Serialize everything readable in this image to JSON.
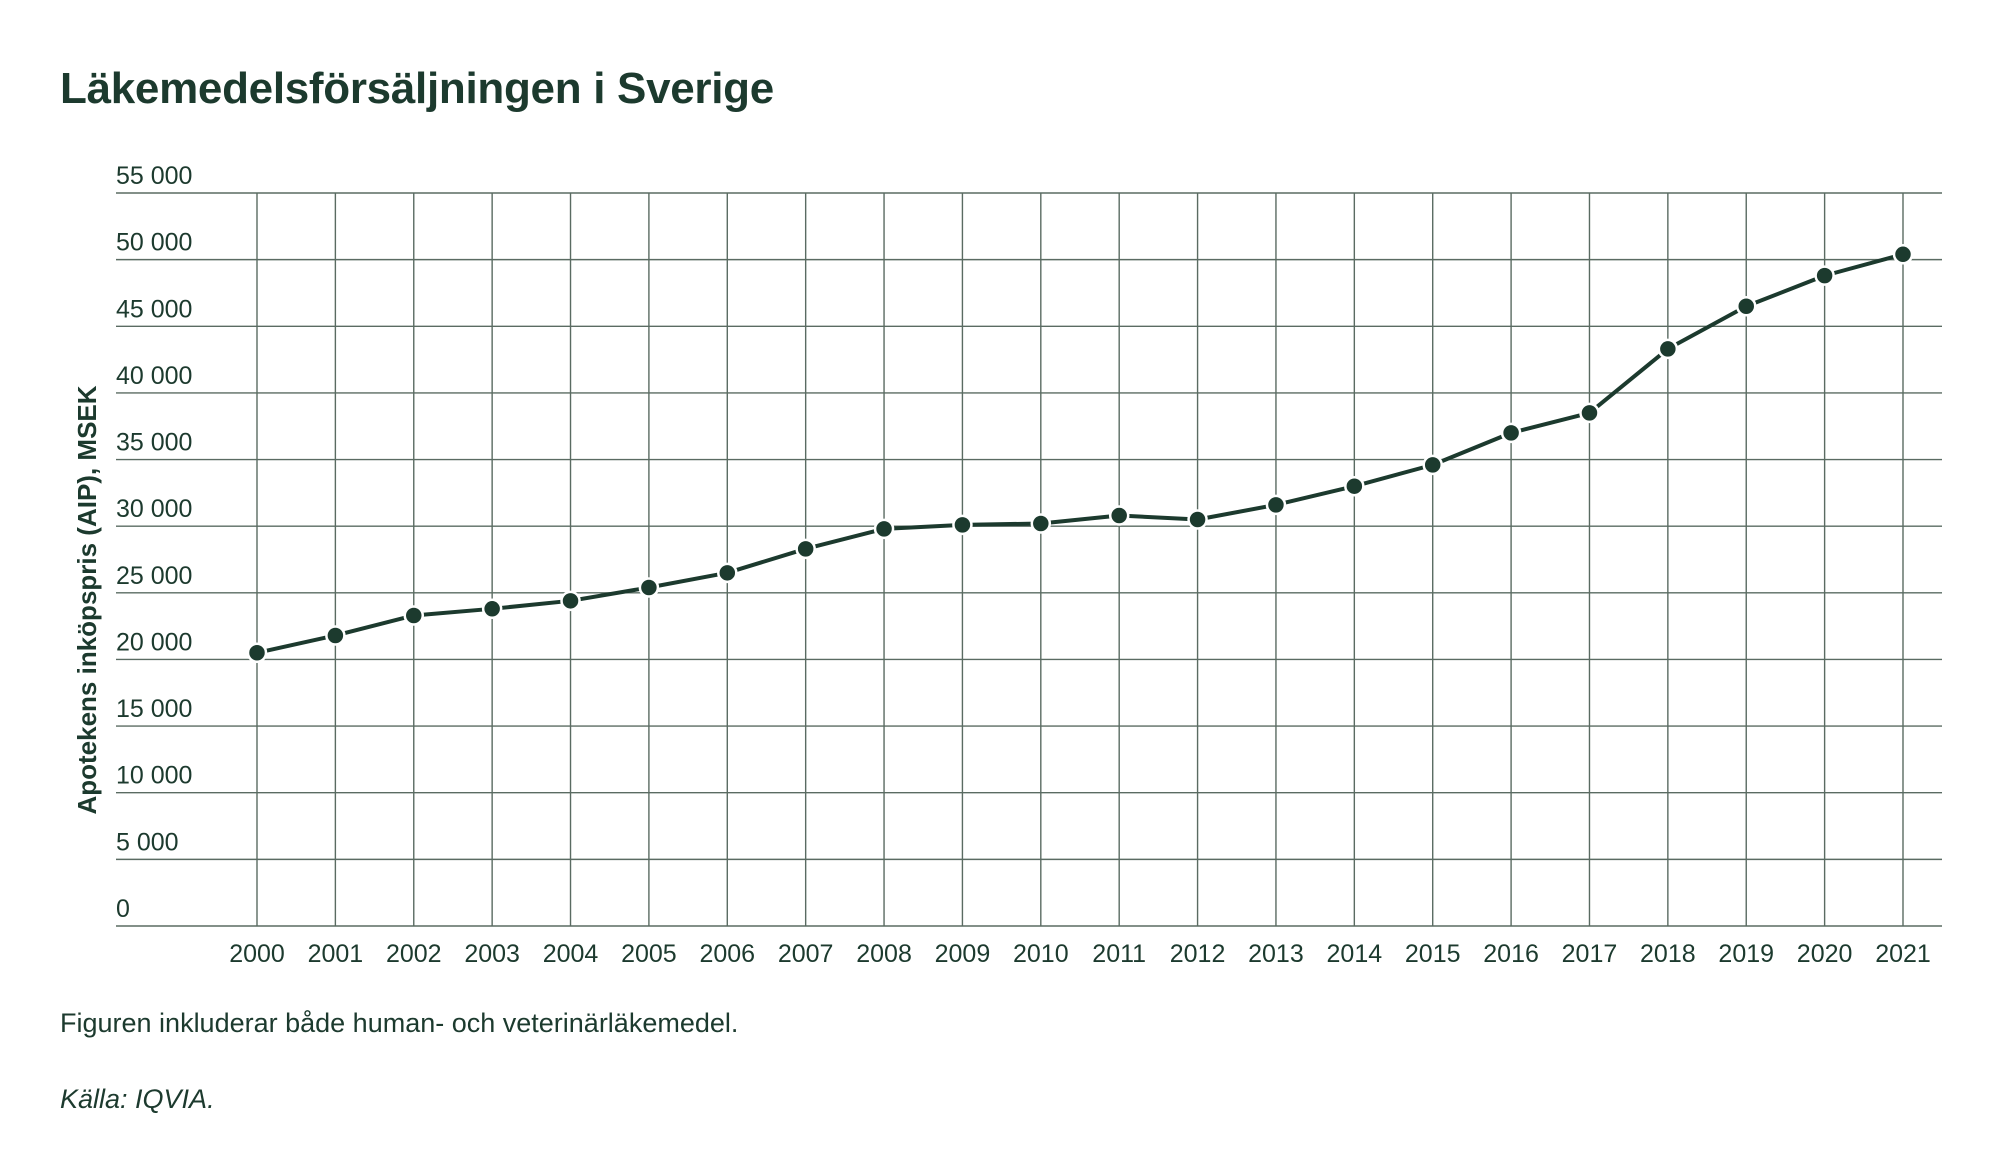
{
  "header": {
    "title": "Läkemedelsförsäljningen i Sverige"
  },
  "footer": {
    "note": "Figuren inkluderar både human- och veterinärläkemedel.",
    "source": "Källa: IQVIA."
  },
  "colors": {
    "text": "#1c3a2e",
    "grid": "#5a6b62",
    "line": "#1c3a2e",
    "marker": "#1c3a2e",
    "marker_outline": "#ffffff"
  },
  "chart_data": {
    "type": "line",
    "title": "Läkemedelsförsäljningen i Sverige",
    "xlabel": "",
    "ylabel": "Apotekens inköpspris (AIP), MSEK",
    "ylim": [
      0,
      55000
    ],
    "ytick_values": [
      0,
      5000,
      10000,
      15000,
      20000,
      25000,
      30000,
      35000,
      40000,
      45000,
      50000,
      55000
    ],
    "ytick_labels": [
      "0",
      "5 000",
      "10 000",
      "15 000",
      "20 000",
      "25 000",
      "30 000",
      "35 000",
      "40 000",
      "45 000",
      "50 000",
      "55 000"
    ],
    "categories": [
      "2000",
      "2001",
      "2002",
      "2003",
      "2004",
      "2005",
      "2006",
      "2007",
      "2008",
      "2009",
      "2010",
      "2011",
      "2012",
      "2013",
      "2014",
      "2015",
      "2016",
      "2017",
      "2018",
      "2019",
      "2020",
      "2021"
    ],
    "series": [
      {
        "values": [
          20500,
          21800,
          23300,
          23800,
          24400,
          25400,
          26500,
          28300,
          29800,
          30100,
          30200,
          30800,
          30500,
          31600,
          33000,
          34600,
          37000,
          38500,
          43300,
          46500,
          48800,
          50400
        ]
      }
    ],
    "grid": true,
    "markers": true
  }
}
